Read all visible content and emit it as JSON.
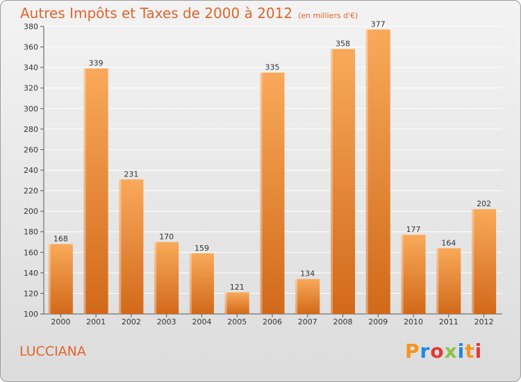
{
  "header": {
    "title": "Autres Impôts et Taxes de 2000 à 2012",
    "unit": "(en milliers d'€)"
  },
  "footer": {
    "commune": "LUCCIANA",
    "brand": "Proxiti",
    "brand_colors": [
      "#f7941d",
      "#1e88e5",
      "#e53935",
      "#8bc34a",
      "#1e88e5",
      "#f7941d",
      "#e53935"
    ]
  },
  "colors": {
    "bar_light": "#f9a95a",
    "bar_dark": "#d2691a",
    "title": "#e0642a",
    "grid": "#ffffff"
  },
  "chart_data": {
    "type": "bar",
    "title": "Autres Impôts et Taxes de 2000 à 2012",
    "subtitle": "(en milliers d'€)",
    "categories": [
      "2000",
      "2001",
      "2002",
      "2003",
      "2004",
      "2005",
      "2006",
      "2007",
      "2008",
      "2009",
      "2010",
      "2011",
      "2012"
    ],
    "values": [
      168,
      339,
      231,
      170,
      159,
      121,
      335,
      134,
      358,
      377,
      177,
      164,
      202
    ],
    "ylim": [
      100,
      380
    ],
    "yticks": [
      100,
      120,
      140,
      160,
      180,
      200,
      220,
      240,
      260,
      280,
      300,
      320,
      340,
      360,
      380
    ],
    "grid": true,
    "xlabel": "",
    "ylabel": ""
  }
}
